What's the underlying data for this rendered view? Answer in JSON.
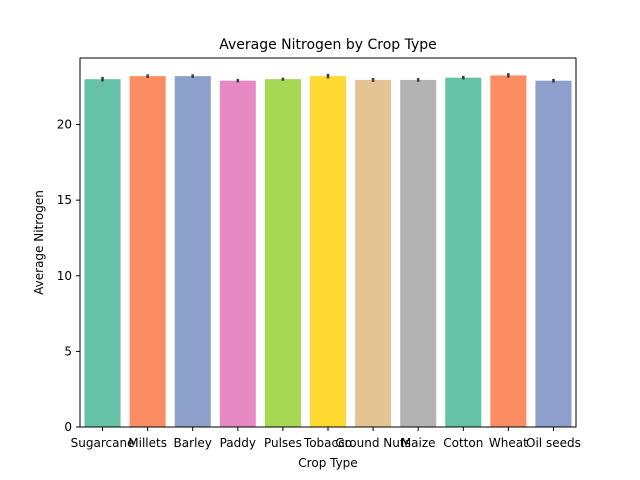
{
  "chart_data": {
    "type": "bar",
    "title": "Average Nitrogen by Crop Type",
    "xlabel": "Crop Type",
    "ylabel": "Average Nitrogen",
    "categories": [
      "Sugarcane",
      "Millets",
      "Barley",
      "Paddy",
      "Pulses",
      "Tobacco",
      "Ground Nuts",
      "Maize",
      "Cotton",
      "Wheat",
      "Oil seeds"
    ],
    "values": [
      23.0,
      23.2,
      23.2,
      22.9,
      23.0,
      23.2,
      22.95,
      22.95,
      23.1,
      23.25,
      22.9
    ],
    "error_low": [
      22.85,
      23.08,
      23.08,
      22.78,
      22.9,
      23.05,
      22.82,
      22.83,
      22.98,
      23.1,
      22.78
    ],
    "error_high": [
      23.15,
      23.32,
      23.32,
      23.02,
      23.1,
      23.35,
      23.08,
      23.07,
      23.22,
      23.4,
      23.02
    ],
    "ylim": [
      0,
      24.4
    ],
    "yticks": [
      0,
      5,
      10,
      15,
      20
    ],
    "grid": false,
    "colors": [
      "#66c2a5",
      "#fc8d62",
      "#8da0cb",
      "#e78ac3",
      "#a6d854",
      "#ffd92f",
      "#e5c494",
      "#b3b3b3",
      "#66c2a5",
      "#fc8d62",
      "#8da0cb"
    ]
  }
}
